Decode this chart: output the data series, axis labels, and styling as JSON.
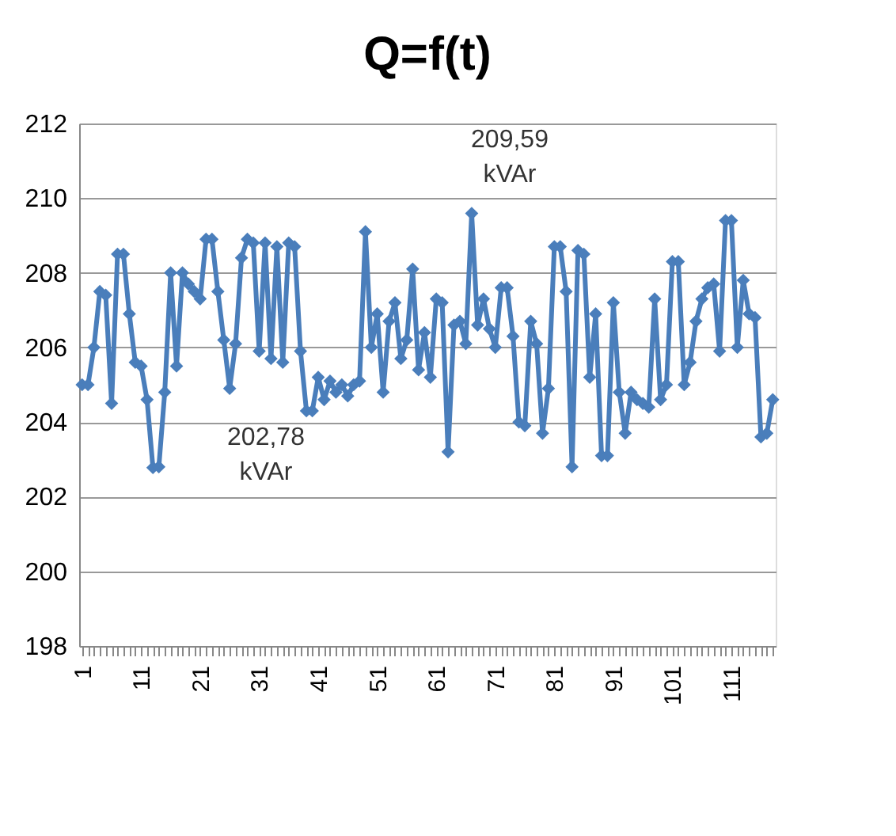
{
  "chart_data": {
    "type": "line",
    "title": "Q=f(t)",
    "categories": [
      "1",
      null,
      null,
      null,
      null,
      null,
      null,
      null,
      null,
      null,
      "11",
      null,
      null,
      null,
      null,
      null,
      null,
      null,
      null,
      null,
      "21",
      null,
      null,
      null,
      null,
      null,
      null,
      null,
      null,
      null,
      "31",
      null,
      null,
      null,
      null,
      null,
      null,
      null,
      null,
      null,
      "41",
      null,
      null,
      null,
      null,
      null,
      null,
      null,
      null,
      null,
      "51",
      null,
      null,
      null,
      null,
      null,
      null,
      null,
      null,
      null,
      "61",
      null,
      null,
      null,
      null,
      null,
      null,
      null,
      null,
      null,
      "71",
      null,
      null,
      null,
      null,
      null,
      null,
      null,
      null,
      null,
      "81",
      null,
      null,
      null,
      null,
      null,
      null,
      null,
      null,
      null,
      "91",
      null,
      null,
      null,
      null,
      null,
      null,
      null,
      null,
      null,
      "101",
      null,
      null,
      null,
      null,
      null,
      null,
      null,
      null,
      null,
      "111",
      null,
      null,
      null,
      null,
      null,
      null,
      null
    ],
    "series": [
      {
        "color": "#4a7ebb",
        "values": [
          205.0,
          205.0,
          206.0,
          207.5,
          207.4,
          204.5,
          208.5,
          208.5,
          206.9,
          205.6,
          205.5,
          204.6,
          202.78,
          202.8,
          204.8,
          208.0,
          205.5,
          208.0,
          207.7,
          207.5,
          207.3,
          208.9,
          208.9,
          207.5,
          206.2,
          204.9,
          206.1,
          208.4,
          208.9,
          208.8,
          205.9,
          208.8,
          205.7,
          208.7,
          205.6,
          208.8,
          208.7,
          205.9,
          204.3,
          204.3,
          205.2,
          204.6,
          205.1,
          204.8,
          205.0,
          204.7,
          205.0,
          205.1,
          209.1,
          206.0,
          206.9,
          204.8,
          206.7,
          207.2,
          205.7,
          206.2,
          208.1,
          205.4,
          206.4,
          205.2,
          207.3,
          207.2,
          203.2,
          206.6,
          206.7,
          206.1,
          209.59,
          206.6,
          207.3,
          206.5,
          206.0,
          207.6,
          207.6,
          206.3,
          204.0,
          203.9,
          206.7,
          206.1,
          203.7,
          204.9,
          208.7,
          208.7,
          207.5,
          202.8,
          208.6,
          208.5,
          205.2,
          206.9,
          203.1,
          203.1,
          207.2,
          204.8,
          203.7,
          204.8,
          204.6,
          204.5,
          204.4,
          207.3,
          204.6,
          205.0,
          208.3,
          208.3,
          205.0,
          205.6,
          206.7,
          207.3,
          207.6,
          207.7,
          205.9,
          209.4,
          209.4,
          206.0,
          207.8,
          206.9,
          206.8,
          203.6,
          203.7,
          204.6
        ]
      }
    ],
    "ylim": [
      198,
      212
    ],
    "yticks": [
      198,
      200,
      202,
      204,
      206,
      208,
      210,
      212
    ],
    "grid": "y",
    "marker": "diamond",
    "line_style": "solid",
    "annotations": [
      "202,78\nkVAr",
      "209,59\nkVAr"
    ]
  }
}
